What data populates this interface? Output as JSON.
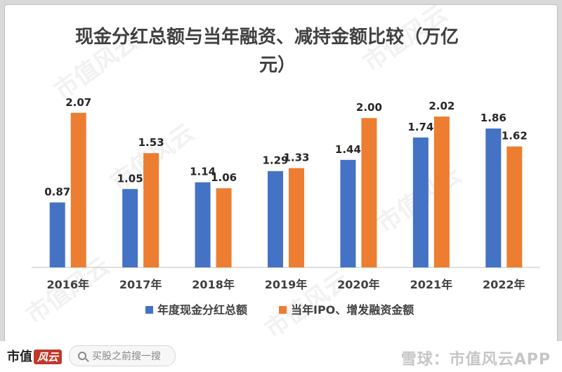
{
  "chart_data": {
    "type": "bar",
    "title": "现金分红总额与当年融资、减持金额比较（万亿",
    "title_line2": "元）",
    "categories": [
      "2016年",
      "2017年",
      "2018年",
      "2019年",
      "2020年",
      "2021年",
      "2022年"
    ],
    "series": [
      {
        "name": "年度现金分红总额",
        "color": "#4472c4",
        "values": [
          0.87,
          1.05,
          1.14,
          1.29,
          1.44,
          1.74,
          1.86
        ]
      },
      {
        "name": "当年IPO、增发融资金额",
        "color": "#ed7d31",
        "values": [
          2.07,
          1.53,
          1.06,
          1.33,
          2.0,
          2.02,
          1.62
        ]
      }
    ],
    "value_labels": [
      [
        "0.87",
        "1.05",
        "1.14",
        "1.29",
        "1.44",
        "1.74",
        "1.86"
      ],
      [
        "2.07",
        "1.53",
        "1.06",
        "1.33",
        "2.00",
        "2.02",
        "1.62"
      ]
    ],
    "ylim": [
      0,
      2.5
    ],
    "grid": false,
    "legend_position": "bottom",
    "label_color": "#262626"
  },
  "watermark_text": "市值风云",
  "footer": {
    "brand": "市值",
    "brand_fancy": "风云",
    "search_placeholder": "买股之前搜一搜",
    "right_logo": "雪球：市值风云APP"
  }
}
